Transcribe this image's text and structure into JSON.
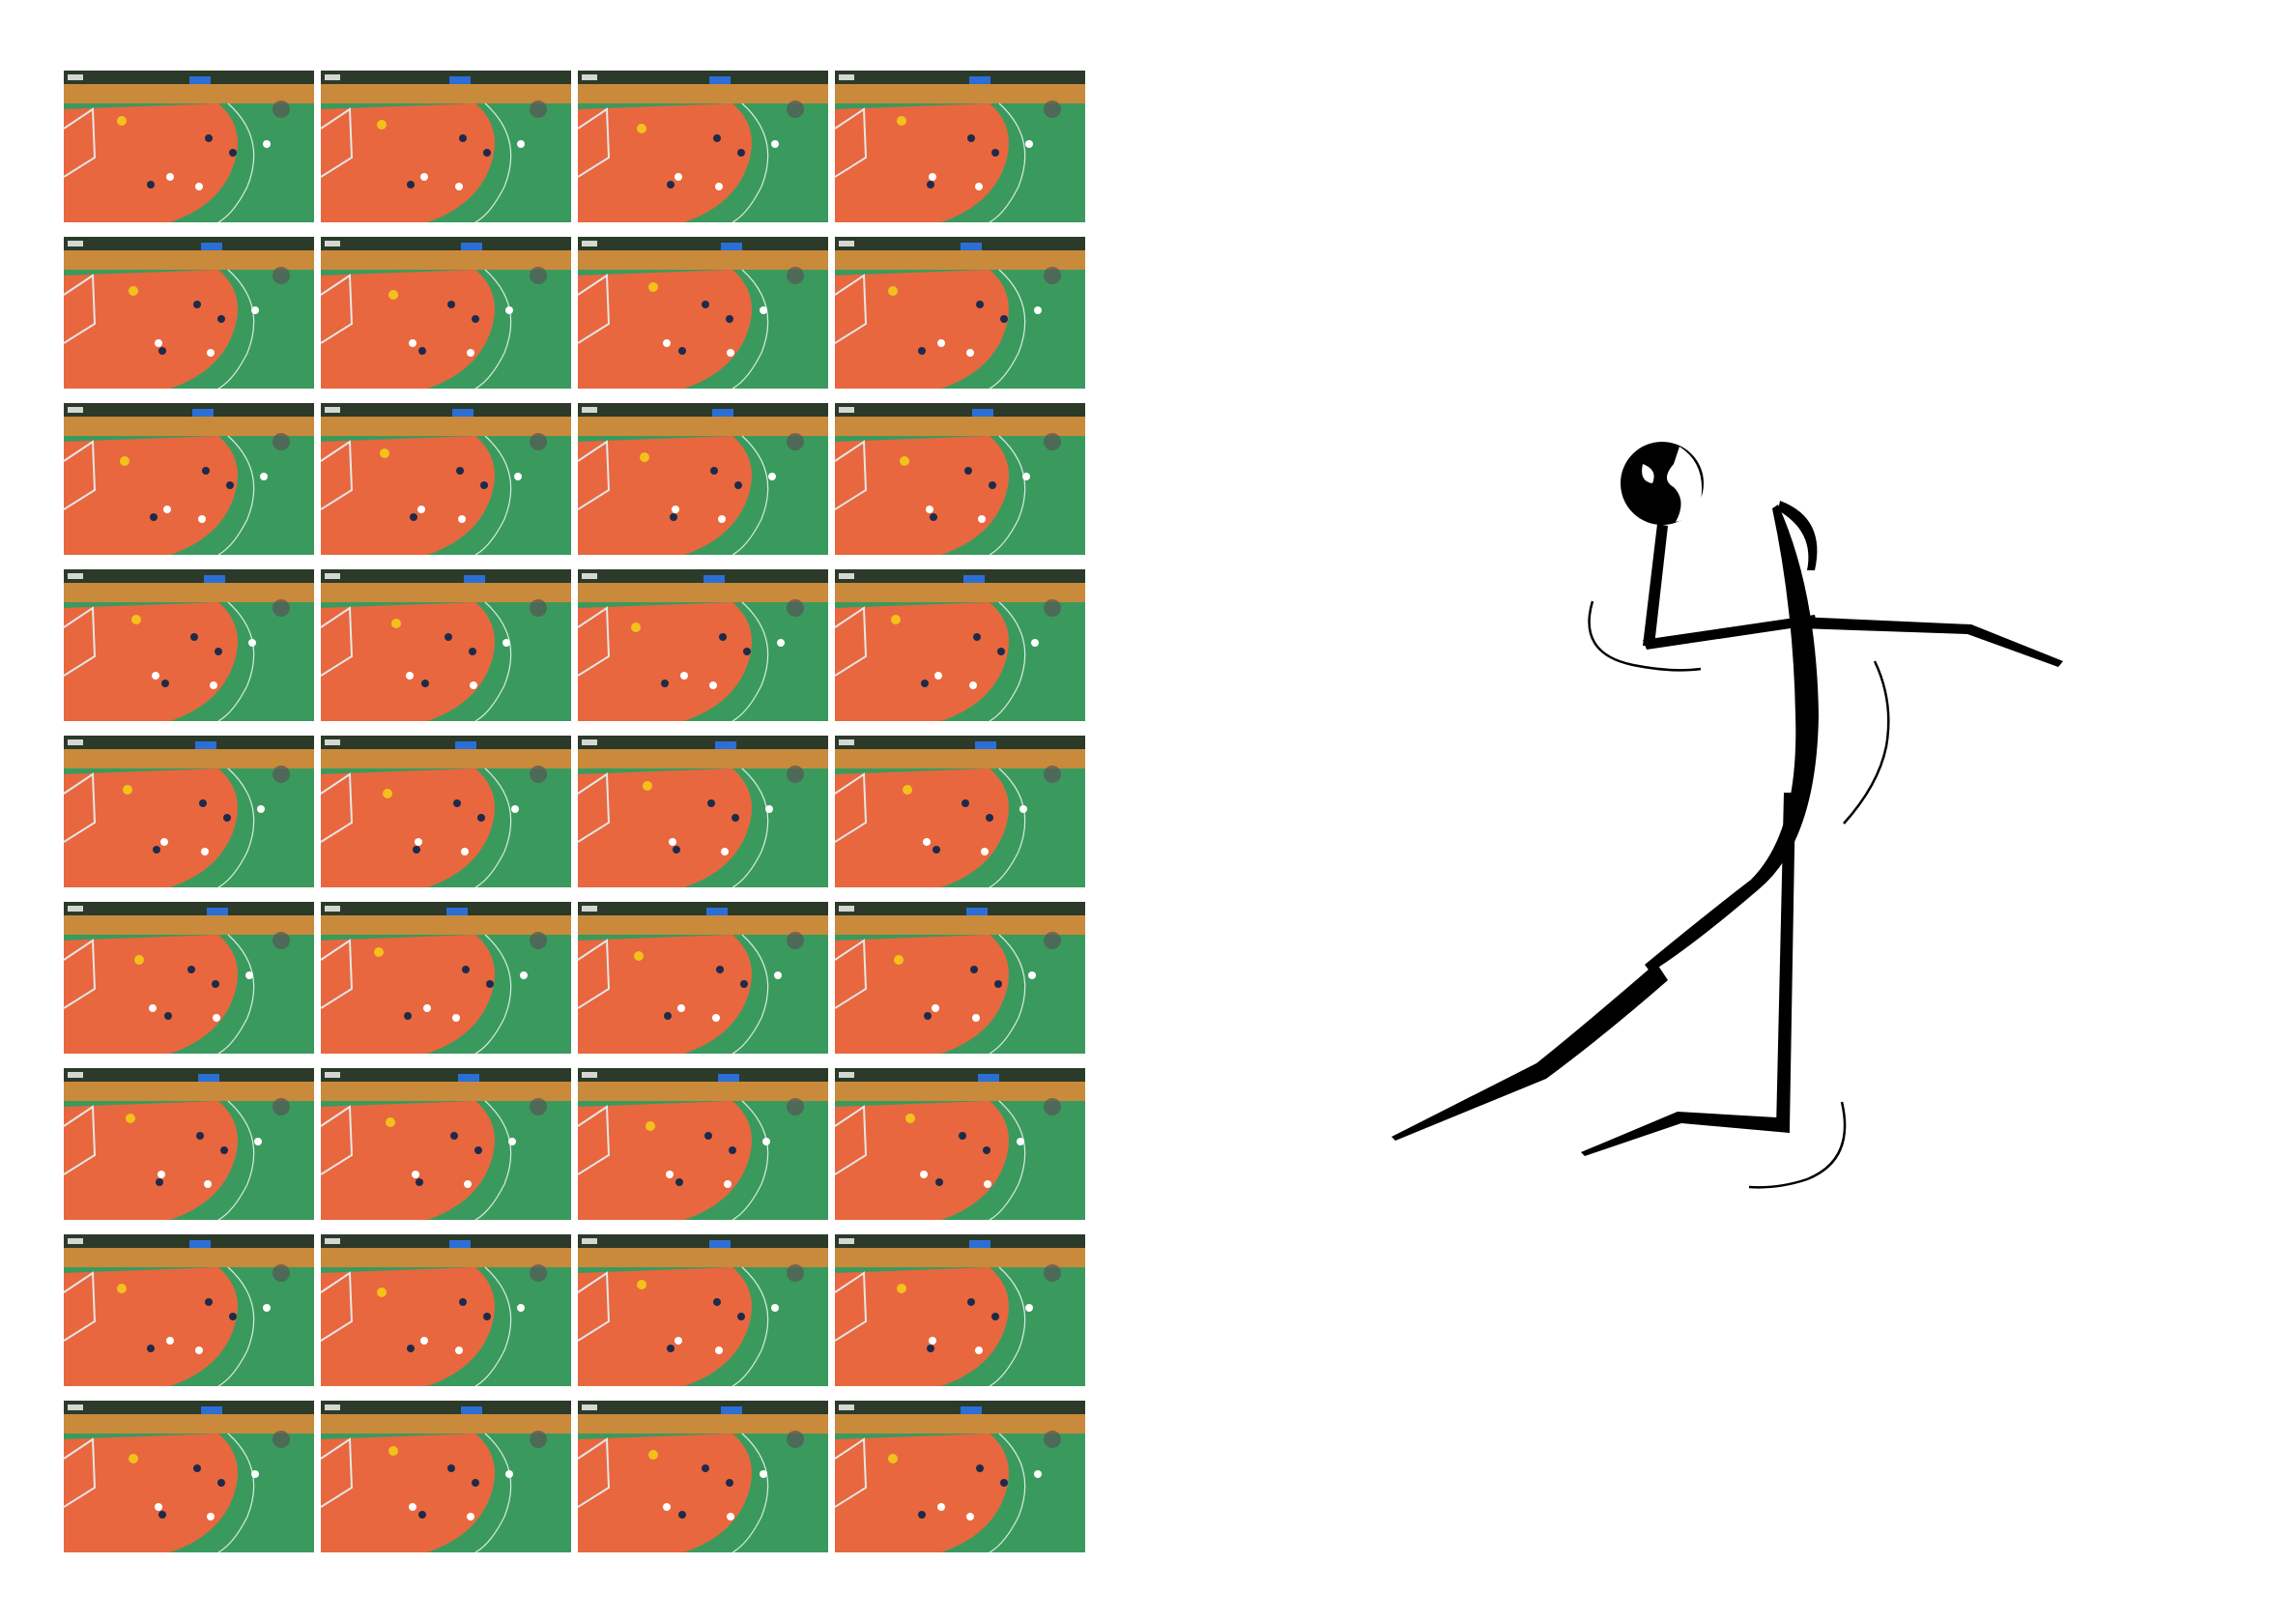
{
  "grid": {
    "rows": 9,
    "columns": 4
  },
  "colors": {
    "court_green": "#3a9a5e",
    "court_orange": "#e8673f",
    "stands": "#c98a3b",
    "pictogram": "#000000"
  },
  "pictogram": {
    "icon": "handball-player-icon"
  }
}
